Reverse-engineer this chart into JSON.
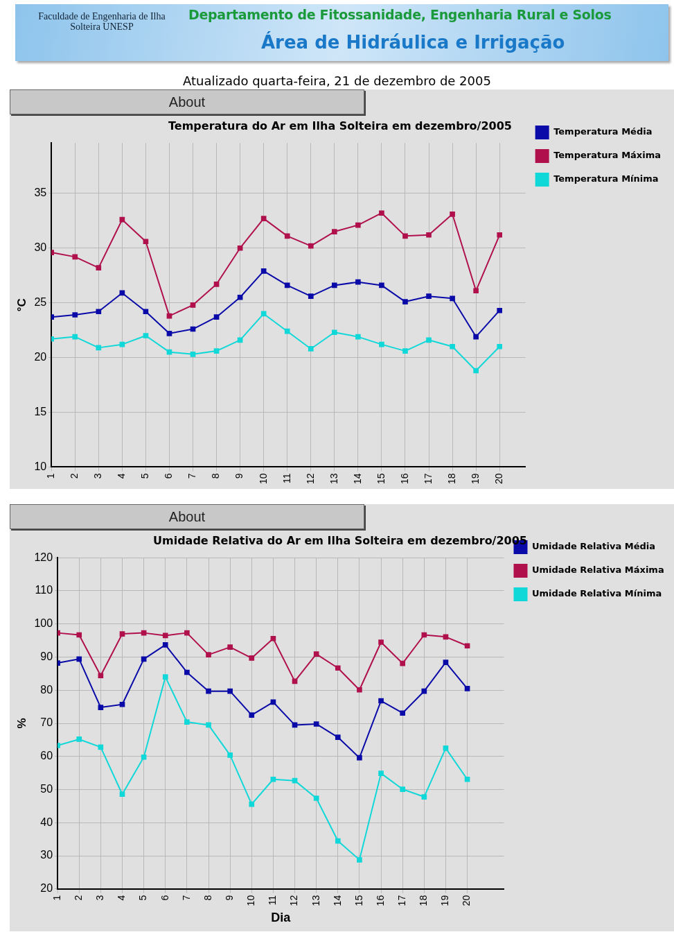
{
  "chart_data": [
    {
      "type": "line",
      "title": "Temperatura do Ar em Ilha Solteira em dezembro/2005",
      "ylabel": "°C",
      "annotations": [
        "Faculdade de Engenharia de Ilha Solteira UNESP",
        "Departamento de Fitossanidade, Engenharia Rural e Solos",
        "Área de Hidráulica e Irrigação",
        "Atualizado quarta-feira, 21 de dezembro de 2005",
        "About"
      ],
      "x": [
        1,
        2,
        3,
        4,
        5,
        6,
        7,
        8,
        9,
        10,
        11,
        12,
        13,
        14,
        15,
        16,
        17,
        18,
        19,
        20
      ],
      "xlim": [
        1,
        21.1
      ],
      "xticks": [
        1,
        2,
        3,
        4,
        5,
        6,
        7,
        8,
        9,
        10,
        11,
        12,
        13,
        14,
        15,
        16,
        17,
        18,
        19,
        20
      ],
      "ylim": [
        10,
        39.6
      ],
      "yticks": [
        10,
        15,
        20,
        25,
        30,
        35
      ],
      "series": [
        {
          "name": "Temperatura Média",
          "color": "#0a0aa8",
          "values": [
            23.7,
            23.9,
            24.2,
            25.9,
            24.2,
            22.2,
            22.6,
            23.7,
            25.5,
            27.9,
            26.6,
            25.6,
            26.6,
            26.9,
            26.6,
            25.1,
            25.6,
            25.4,
            21.9,
            24.3
          ]
        },
        {
          "name": "Temperatura Máxima",
          "color": "#b0104c",
          "values": [
            29.6,
            29.2,
            28.2,
            32.6,
            30.6,
            23.8,
            24.8,
            26.7,
            30.0,
            32.7,
            31.1,
            30.2,
            31.5,
            32.1,
            33.2,
            31.1,
            31.2,
            33.1,
            26.1,
            31.2
          ]
        },
        {
          "name": "Temperatura Mínima",
          "color": "#10d8d8",
          "values": [
            21.7,
            21.9,
            20.9,
            21.2,
            22.0,
            20.5,
            20.3,
            20.6,
            21.6,
            24.0,
            22.4,
            20.8,
            22.3,
            21.9,
            21.2,
            20.6,
            21.6,
            21.0,
            18.8,
            21.0
          ]
        }
      ],
      "grid": true,
      "legend": "top right",
      "marker": "square",
      "line_style": "solid"
    },
    {
      "type": "line",
      "title": "Umidade Relativa do Ar em Ilha Solteira em dezembro/2005",
      "xlabel": "Dia",
      "ylabel": "%",
      "annotations": [
        "About"
      ],
      "x": [
        1,
        2,
        3,
        4,
        5,
        6,
        7,
        8,
        9,
        10,
        11,
        12,
        13,
        14,
        15,
        16,
        17,
        18,
        19,
        20
      ],
      "xlim": [
        1,
        21.7
      ],
      "xticks": [
        1,
        2,
        3,
        4,
        5,
        6,
        7,
        8,
        9,
        10,
        11,
        12,
        13,
        14,
        15,
        16,
        17,
        18,
        19,
        20
      ],
      "ylim": [
        20,
        120
      ],
      "yticks": [
        20,
        30,
        40,
        50,
        60,
        70,
        80,
        90,
        100,
        110,
        120
      ],
      "series": [
        {
          "name": "Umidade Relativa Média",
          "color": "#0a0aa8",
          "values": [
            88.2,
            89.4,
            74.8,
            75.7,
            89.4,
            93.7,
            85.4,
            79.7,
            79.7,
            72.5,
            76.4,
            69.5,
            69.8,
            65.8,
            59.6,
            76.8,
            73.1,
            79.7,
            88.4,
            80.5
          ]
        },
        {
          "name": "Umidade Relativa Máxima",
          "color": "#b0104c",
          "values": [
            97.3,
            96.7,
            84.4,
            97.0,
            97.3,
            96.5,
            97.3,
            90.7,
            93.0,
            89.7,
            95.6,
            82.7,
            90.9,
            86.7,
            80.1,
            94.5,
            88.1,
            96.7,
            96.1,
            93.4
          ]
        },
        {
          "name": "Umidade Relativa Mínima",
          "color": "#10d8d8",
          "values": [
            63.3,
            65.2,
            62.8,
            48.6,
            59.8,
            84.0,
            70.4,
            69.5,
            60.4,
            45.6,
            53.1,
            52.7,
            47.4,
            34.5,
            28.8,
            54.9,
            50.1,
            47.8,
            62.5,
            53.1
          ]
        }
      ],
      "grid": true,
      "legend": "top right",
      "marker": "square",
      "line_style": "solid"
    }
  ]
}
